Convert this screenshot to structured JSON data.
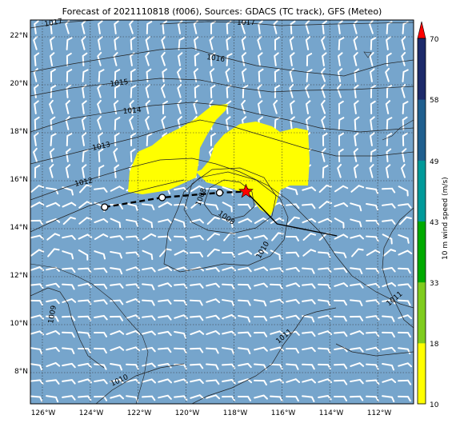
{
  "title": "Forecast of 2021110818 (f006), Sources: GDACS (TC track), GFS (Meteo)",
  "colors": {
    "background_sea": "#76a5cc",
    "gust_zone": "#ffff00",
    "track": "#000000",
    "storm_marker": "#ff0000"
  },
  "lon_ticks": [
    "126°W",
    "124°W",
    "122°W",
    "120°W",
    "118°W",
    "116°W",
    "114°W",
    "112°W"
  ],
  "lat_ticks": [
    "22°N",
    "20°N",
    "18°N",
    "16°N",
    "14°N",
    "12°N",
    "10°N",
    "8°N"
  ],
  "isobar_labels": [
    "1017",
    "1017",
    "1016",
    "1015",
    "1014",
    "1013",
    "1012",
    "1008",
    "1008",
    "1010",
    "1009",
    "1011",
    "1011",
    "1010"
  ],
  "colorbar": {
    "label": "10 m wind speed (m/s)",
    "ticks": [
      "70",
      "58",
      "49",
      "43",
      "33",
      "18",
      "10"
    ],
    "colors": [
      "#ffff00",
      "#7fcc1e",
      "#00aa00",
      "#009999",
      "#1f5f8f",
      "#1c2a6a"
    ],
    "extend_color": "#ff0000"
  },
  "track": {
    "past": [
      [
        -123.4,
        14.9
      ],
      [
        -121.0,
        15.3
      ],
      [
        -118.6,
        15.5
      ],
      [
        -117.5,
        15.55
      ]
    ],
    "forecast": [
      [
        -117.5,
        15.55
      ],
      [
        -116.2,
        14.2
      ],
      [
        -113.7,
        13.7
      ]
    ],
    "current": [
      -117.5,
      15.55
    ]
  }
}
